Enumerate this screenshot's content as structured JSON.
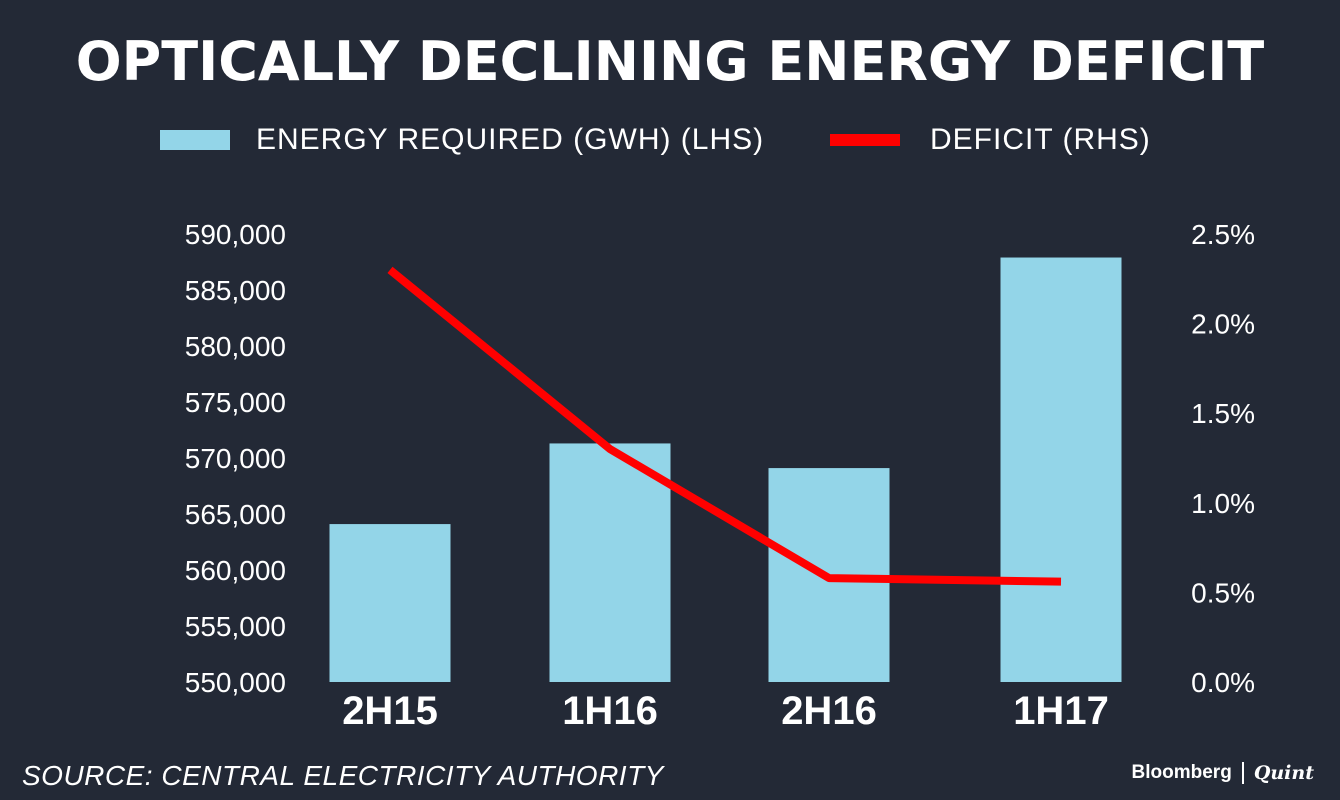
{
  "chart_data": {
    "type": "bar+line",
    "title": "OPTICALLY DECLINING ENERGY DEFICIT",
    "categories": [
      "2H15",
      "1H16",
      "2H16",
      "1H17"
    ],
    "series": [
      {
        "name": "ENERGY REQUIRED (GWH) (LHS)",
        "type": "bar",
        "axis": "left",
        "color": "#93d5e8",
        "values": [
          564100,
          571300,
          569100,
          587900
        ]
      },
      {
        "name": "DEFICIT (RHS)",
        "type": "line",
        "axis": "right",
        "color": "#ff0000",
        "values": [
          2.3,
          1.3,
          0.58,
          0.56
        ]
      }
    ],
    "left_axis": {
      "min": 550000,
      "max": 590000,
      "step": 5000,
      "tick_labels": [
        "550,000",
        "555,000",
        "560,000",
        "565,000",
        "570,000",
        "575,000",
        "580,000",
        "585,000",
        "590,000"
      ]
    },
    "right_axis": {
      "min": 0,
      "max": 2.5,
      "step": 0.5,
      "tick_labels": [
        "0.0%",
        "0.5%",
        "1.0%",
        "1.5%",
        "2.0%",
        "2.5%"
      ]
    },
    "grid": false,
    "legend_position": "top-center"
  },
  "legend": {
    "bar_label": "ENERGY REQUIRED (GWH) (LHS)",
    "line_label": "DEFICIT (RHS)"
  },
  "footer": {
    "source": "SOURCE: CENTRAL ELECTRICITY AUTHORITY",
    "brand_left": "Bloomberg",
    "brand_right": "Quint"
  }
}
